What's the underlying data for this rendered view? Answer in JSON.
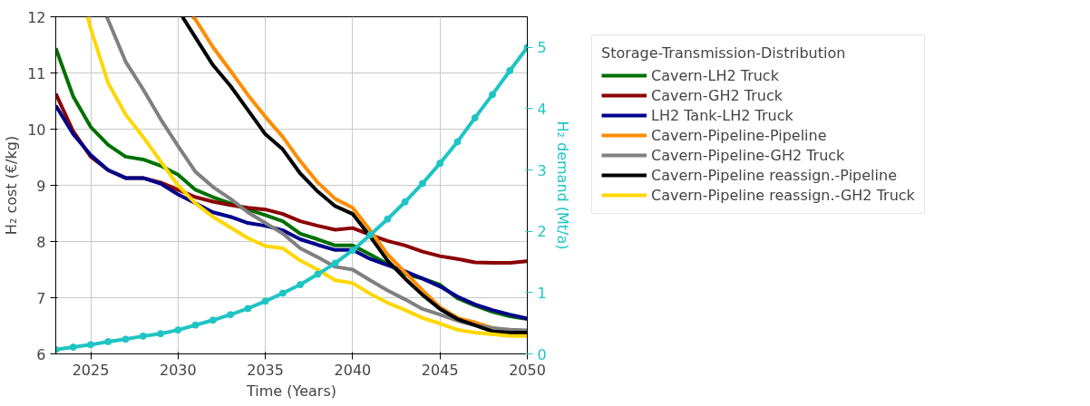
{
  "chart_data": {
    "type": "line",
    "xlabel": "Time (Years)",
    "ylabel": "H₂ cost (€/kg)",
    "y2label": "H₂ demand (Mt/a)",
    "legend_title": "Storage-Transmission-Distribution",
    "legend": "right",
    "grid": true,
    "line_style": "solid",
    "xlim": [
      2023,
      2050
    ],
    "xticks": [
      2025,
      2030,
      2035,
      2040,
      2045,
      2050
    ],
    "ylim": [
      6,
      12
    ],
    "yticks": [
      6,
      7,
      8,
      9,
      10,
      11,
      12
    ],
    "y2lim": [
      0,
      5.5
    ],
    "y2ticks": [
      0,
      1,
      2,
      3,
      4,
      5
    ],
    "x": [
      2023,
      2024,
      2025,
      2026,
      2027,
      2028,
      2029,
      2030,
      2031,
      2032,
      2033,
      2034,
      2035,
      2036,
      2037,
      2038,
      2039,
      2040,
      2041,
      2042,
      2043,
      2044,
      2045,
      2046,
      2047,
      2048,
      2049,
      2050
    ],
    "series": [
      {
        "name": "Cavern-LH2 Truck",
        "color": "#007000",
        "values": [
          11.44,
          10.58,
          10.04,
          9.72,
          9.51,
          9.46,
          9.35,
          9.19,
          8.92,
          8.79,
          8.68,
          8.57,
          8.47,
          8.36,
          8.14,
          8.04,
          7.93,
          7.93,
          7.77,
          7.6,
          7.42,
          7.34,
          7.23,
          6.99,
          6.86,
          6.75,
          6.67,
          6.62
        ]
      },
      {
        "name": "Cavern-GH2 Truck",
        "color": "#8b0000",
        "values": [
          10.63,
          9.96,
          9.51,
          9.27,
          9.13,
          9.13,
          9.05,
          8.92,
          8.79,
          8.71,
          8.65,
          8.6,
          8.57,
          8.49,
          8.36,
          8.28,
          8.21,
          8.24,
          8.12,
          8.01,
          7.93,
          7.82,
          7.74,
          7.69,
          7.63,
          7.62,
          7.62,
          7.65
        ]
      },
      {
        "name": "LH2 Tank-LH2 Truck",
        "color": "#00008b",
        "values": [
          10.42,
          9.91,
          9.54,
          9.27,
          9.13,
          9.13,
          9.03,
          8.84,
          8.68,
          8.52,
          8.44,
          8.33,
          8.28,
          8.2,
          8.04,
          7.94,
          7.85,
          7.85,
          7.69,
          7.58,
          7.47,
          7.34,
          7.2,
          7.02,
          6.88,
          6.78,
          6.7,
          6.63
        ]
      },
      {
        "name": "Cavern-Pipeline-Pipeline",
        "color": "#ff8c00",
        "x": [
          2030.83,
          2031,
          2032,
          2033,
          2034,
          2035,
          2036,
          2037,
          2038,
          2039,
          2040,
          2041,
          2042,
          2043,
          2044,
          2045,
          2046,
          2047,
          2048,
          2049,
          2050
        ],
        "values": [
          12,
          11.95,
          11.46,
          11.04,
          10.61,
          10.22,
          9.86,
          9.43,
          9.05,
          8.76,
          8.6,
          8.2,
          7.77,
          7.45,
          7.13,
          6.83,
          6.64,
          6.56,
          6.46,
          6.4,
          6.38
        ]
      },
      {
        "name": "Cavern-Pipeline-GH2 Truck",
        "color": "#808080",
        "x": [
          2025.92,
          2027,
          2028,
          2029,
          2030,
          2031,
          2032,
          2033,
          2034,
          2035,
          2036,
          2037,
          2038,
          2039,
          2040,
          2041,
          2042,
          2043,
          2044,
          2045,
          2046,
          2047,
          2048,
          2049,
          2050
        ],
        "values": [
          12,
          11.2,
          10.71,
          10.18,
          9.7,
          9.24,
          8.97,
          8.76,
          8.52,
          8.33,
          8.14,
          7.88,
          7.72,
          7.55,
          7.5,
          7.31,
          7.13,
          6.97,
          6.8,
          6.7,
          6.59,
          6.51,
          6.46,
          6.43,
          6.42
        ]
      },
      {
        "name": "Cavern-Pipeline reassign.-Pipeline",
        "color": "#000000",
        "x": [
          2030.25,
          2031,
          2032,
          2033,
          2034,
          2035,
          2036,
          2037,
          2038,
          2039,
          2040,
          2041,
          2042,
          2043,
          2044,
          2045,
          2046,
          2047,
          2048,
          2049,
          2050
        ],
        "values": [
          12,
          11.63,
          11.14,
          10.77,
          10.34,
          9.91,
          9.64,
          9.21,
          8.89,
          8.63,
          8.49,
          8.09,
          7.66,
          7.34,
          7.05,
          6.8,
          6.62,
          6.51,
          6.4,
          6.38,
          6.38
        ]
      },
      {
        "name": "Cavern-Pipeline reassign.-GH2 Truck",
        "color": "#ffd700",
        "x": [
          2024.83,
          2025,
          2026,
          2027,
          2028,
          2029,
          2030,
          2031,
          2032,
          2033,
          2034,
          2035,
          2036,
          2037,
          2038,
          2039,
          2040,
          2041,
          2042,
          2043,
          2044,
          2045,
          2046,
          2047,
          2048,
          2049,
          2050
        ],
        "values": [
          12,
          11.79,
          10.82,
          10.26,
          9.86,
          9.43,
          9.0,
          8.68,
          8.44,
          8.25,
          8.06,
          7.92,
          7.88,
          7.66,
          7.5,
          7.31,
          7.26,
          7.07,
          6.91,
          6.78,
          6.64,
          6.54,
          6.43,
          6.38,
          6.35,
          6.32,
          6.32
        ]
      },
      {
        "color": "#1fc4c4",
        "axis": "y2",
        "marker": "circle",
        "values": [
          0.07,
          0.11,
          0.15,
          0.2,
          0.24,
          0.29,
          0.33,
          0.39,
          0.47,
          0.55,
          0.64,
          0.74,
          0.86,
          0.99,
          1.13,
          1.3,
          1.48,
          1.69,
          1.94,
          2.2,
          2.48,
          2.78,
          3.11,
          3.46,
          3.85,
          4.23,
          4.62,
          5.0
        ]
      }
    ]
  }
}
